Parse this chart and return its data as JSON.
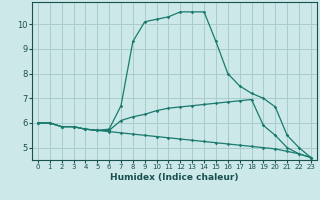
{
  "title": "",
  "xlabel": "Humidex (Indice chaleur)",
  "background_color": "#cce8e8",
  "grid_color": "#aacccc",
  "line_color": "#1a7a6e",
  "xlim": [
    -0.5,
    23.5
  ],
  "ylim": [
    4.5,
    10.9
  ],
  "xticks": [
    0,
    1,
    2,
    3,
    4,
    5,
    6,
    7,
    8,
    9,
    10,
    11,
    12,
    13,
    14,
    15,
    16,
    17,
    18,
    19,
    20,
    21,
    22,
    23
  ],
  "yticks": [
    5,
    6,
    7,
    8,
    9,
    10
  ],
  "series1_x": [
    0,
    1,
    2,
    3,
    4,
    5,
    6,
    7,
    8,
    9,
    10,
    11,
    12,
    13,
    14,
    15,
    16,
    17,
    18,
    19,
    20,
    21,
    22,
    23
  ],
  "series1_y": [
    6.0,
    6.0,
    5.85,
    5.85,
    5.75,
    5.7,
    5.75,
    6.7,
    9.3,
    10.1,
    10.2,
    10.3,
    10.5,
    10.5,
    10.5,
    9.3,
    8.0,
    7.5,
    7.2,
    7.0,
    6.65,
    5.5,
    5.0,
    4.6
  ],
  "series2_x": [
    0,
    1,
    2,
    3,
    4,
    5,
    6,
    7,
    8,
    9,
    10,
    11,
    12,
    13,
    14,
    15,
    16,
    17,
    18,
    19,
    20,
    21,
    22,
    23
  ],
  "series2_y": [
    6.0,
    6.0,
    5.85,
    5.85,
    5.75,
    5.7,
    5.7,
    6.1,
    6.25,
    6.35,
    6.5,
    6.6,
    6.65,
    6.7,
    6.75,
    6.8,
    6.85,
    6.9,
    6.95,
    5.9,
    5.5,
    5.0,
    4.75,
    4.6
  ],
  "series3_x": [
    0,
    1,
    2,
    3,
    4,
    5,
    6,
    7,
    8,
    9,
    10,
    11,
    12,
    13,
    14,
    15,
    16,
    17,
    18,
    19,
    20,
    21,
    22,
    23
  ],
  "series3_y": [
    6.0,
    6.0,
    5.85,
    5.85,
    5.75,
    5.7,
    5.65,
    5.6,
    5.55,
    5.5,
    5.45,
    5.4,
    5.35,
    5.3,
    5.25,
    5.2,
    5.15,
    5.1,
    5.05,
    5.0,
    4.95,
    4.85,
    4.75,
    4.6
  ]
}
